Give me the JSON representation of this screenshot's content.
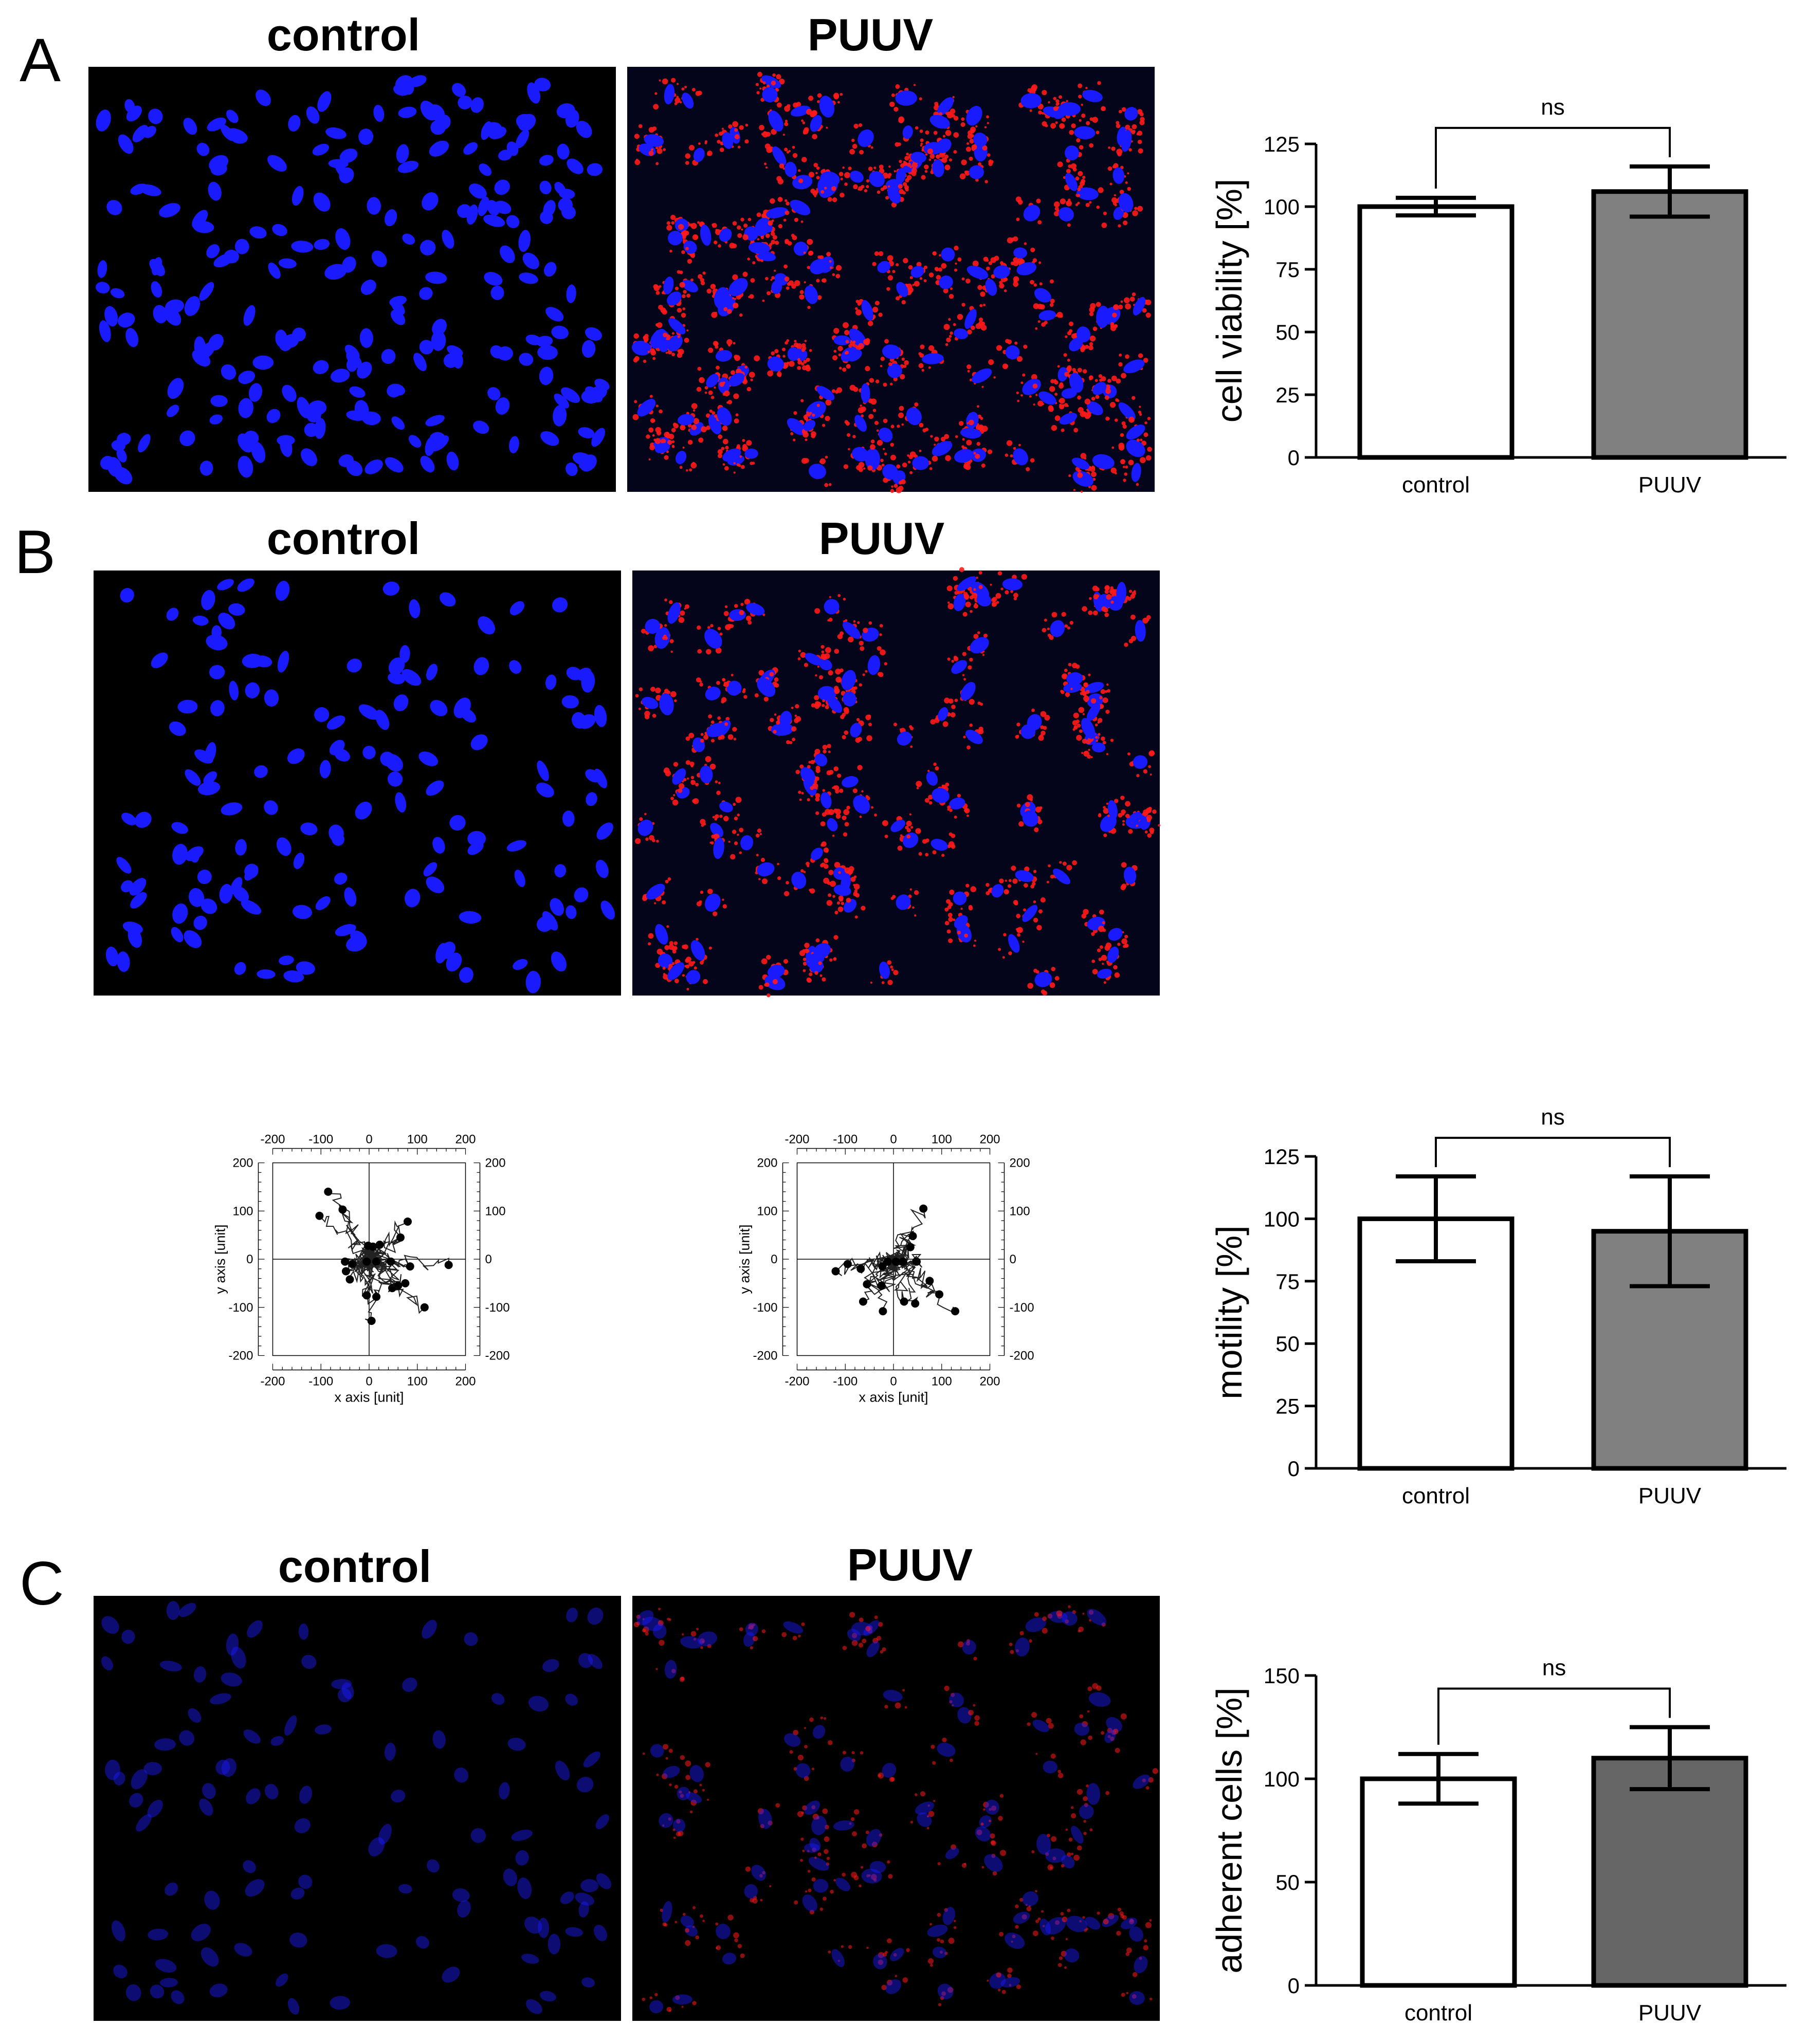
{
  "panels": {
    "A": {
      "label": "A",
      "titles": [
        "control",
        "PUUV"
      ]
    },
    "B": {
      "label": "B",
      "titles": [
        "control",
        "PUUV"
      ]
    },
    "C": {
      "label": "C",
      "titles": [
        "control",
        "PUUV"
      ]
    }
  },
  "micrographs": {
    "colors": {
      "background": "#000000",
      "nuclei": "#1a1aff",
      "virus": "#ff1a1a"
    }
  },
  "chart_data": [
    {
      "type": "bar",
      "panel": "A",
      "categories": [
        "control",
        "PUUV"
      ],
      "values": [
        100,
        106
      ],
      "error": [
        3.5,
        10
      ],
      "colors": [
        "#ffffff",
        "#808080"
      ],
      "ylabel": "cell viability [%]",
      "ylim": [
        0,
        125
      ],
      "yticks": [
        0,
        25,
        50,
        75,
        100,
        125
      ],
      "annotation": "ns"
    },
    {
      "type": "bar",
      "panel": "B",
      "categories": [
        "control",
        "PUUV"
      ],
      "values": [
        100,
        95
      ],
      "error": [
        17,
        22
      ],
      "colors": [
        "#ffffff",
        "#808080"
      ],
      "ylabel": "motility [%]",
      "ylim": [
        0,
        125
      ],
      "yticks": [
        0,
        25,
        50,
        75,
        100,
        125
      ],
      "annotation": "ns"
    },
    {
      "type": "bar",
      "panel": "C",
      "categories": [
        "control",
        "PUUV"
      ],
      "values": [
        100,
        110
      ],
      "error": [
        12,
        15
      ],
      "colors": [
        "#ffffff",
        "#666666"
      ],
      "ylabel": "adherent cells [%]",
      "ylim": [
        0,
        150
      ],
      "yticks": [
        0,
        50,
        100,
        150
      ],
      "annotation": "ns"
    },
    {
      "type": "scatter",
      "panel": "B",
      "name": "control trajectories",
      "xlabel": "x axis [unit]",
      "ylabel": "y axis [unit]",
      "xlim": [
        -200,
        200
      ],
      "ylim": [
        -200,
        200
      ],
      "ticks": [
        -200,
        -100,
        0,
        100,
        200
      ],
      "endpoints": [
        [
          -85,
          140
        ],
        [
          -55,
          103
        ],
        [
          -103,
          90
        ],
        [
          80,
          78
        ],
        [
          -2,
          28
        ],
        [
          8,
          26
        ],
        [
          22,
          30
        ],
        [
          65,
          45
        ],
        [
          -35,
          -10
        ],
        [
          -50,
          -5
        ],
        [
          -48,
          -25
        ],
        [
          -40,
          -42
        ],
        [
          -5,
          -5
        ],
        [
          15,
          -5
        ],
        [
          45,
          -5
        ],
        [
          85,
          -15
        ],
        [
          165,
          -12
        ],
        [
          75,
          -50
        ],
        [
          60,
          -55
        ],
        [
          48,
          -60
        ],
        [
          -5,
          -75
        ],
        [
          15,
          -78
        ],
        [
          115,
          -100
        ],
        [
          5,
          -128
        ]
      ]
    },
    {
      "type": "scatter",
      "panel": "B",
      "name": "PUUV trajectories",
      "xlabel": "x axis [unit]",
      "ylabel": "y axis [unit]",
      "xlim": [
        -200,
        200
      ],
      "ylim": [
        -200,
        200
      ],
      "ticks": [
        -200,
        -100,
        0,
        100,
        200
      ],
      "endpoints": [
        [
          62,
          105
        ],
        [
          40,
          48
        ],
        [
          35,
          25
        ],
        [
          -120,
          -25
        ],
        [
          -95,
          -10
        ],
        [
          -68,
          -20
        ],
        [
          -55,
          -52
        ],
        [
          -63,
          -88
        ],
        [
          -23,
          -15
        ],
        [
          -12,
          -5
        ],
        [
          5,
          -5
        ],
        [
          20,
          -5
        ],
        [
          48,
          -5
        ],
        [
          75,
          -45
        ],
        [
          -25,
          -55
        ],
        [
          22,
          -88
        ],
        [
          45,
          -92
        ],
        [
          95,
          -73
        ],
        [
          128,
          -108
        ],
        [
          -22,
          -108
        ]
      ]
    }
  ]
}
